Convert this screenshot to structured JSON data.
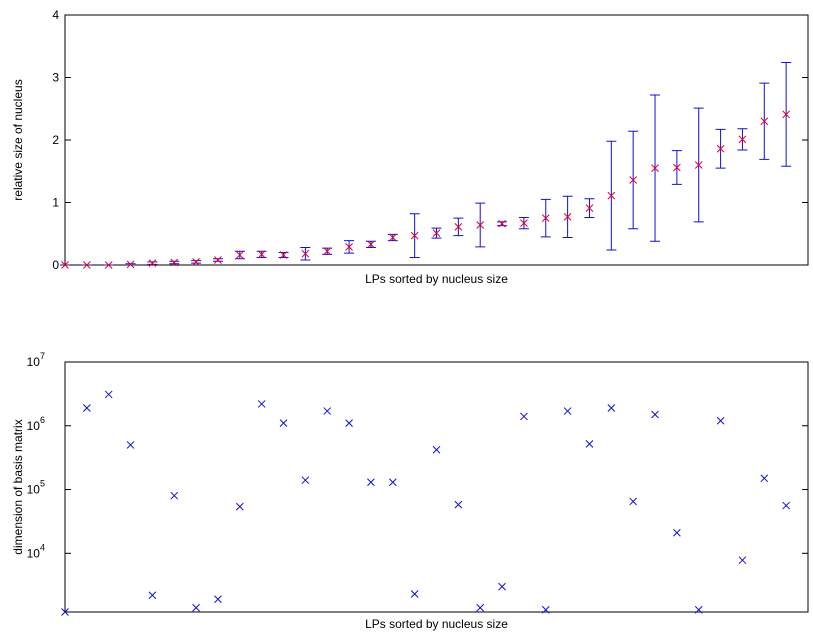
{
  "chart_data": [
    {
      "type": "errorbar",
      "xlabel": "LPs sorted by nucleus size",
      "ylabel": "relative size of nucleus",
      "x": [
        1,
        2,
        3,
        4,
        5,
        6,
        7,
        8,
        9,
        10,
        11,
        12,
        13,
        14,
        15,
        16,
        17,
        18,
        19,
        20,
        21,
        22,
        23,
        24,
        25,
        26,
        27,
        28,
        29,
        30,
        31,
        32,
        33,
        34
      ],
      "xlim": [
        1,
        35
      ],
      "ylim": [
        0,
        4
      ],
      "yticks": [
        0,
        1,
        2,
        3,
        4
      ],
      "series": [
        {
          "marker_color": "#e3002b",
          "color": "#1010d8",
          "values": [
            0,
            0,
            0,
            0.01,
            0.03,
            0.04,
            0.05,
            0.08,
            0.16,
            0.17,
            0.16,
            0.18,
            0.22,
            0.29,
            0.33,
            0.44,
            0.47,
            0.51,
            0.61,
            0.64,
            0.66,
            0.67,
            0.75,
            0.77,
            0.91,
            1.11,
            1.36,
            1.55,
            1.56,
            1.6,
            1.86,
            2.01,
            2.3,
            2.41
          ],
          "errors": [
            0,
            0,
            0,
            0.01,
            0.02,
            0.02,
            0.02,
            0.02,
            0.06,
            0.05,
            0.04,
            0.1,
            0.05,
            0.1,
            0.05,
            0.05,
            0.35,
            0.08,
            0.14,
            0.35,
            0.03,
            0.09,
            0.3,
            0.33,
            0.15,
            0.87,
            0.78,
            1.17,
            0.27,
            0.91,
            0.31,
            0.17,
            0.61,
            0.83
          ]
        }
      ]
    },
    {
      "type": "scatter",
      "xlabel": "LPs sorted by nucleus size",
      "ylabel": "dimension of basis matrix",
      "x": [
        1,
        2,
        3,
        4,
        5,
        6,
        7,
        8,
        9,
        10,
        11,
        12,
        13,
        14,
        15,
        16,
        17,
        18,
        19,
        20,
        21,
        22,
        23,
        24,
        25,
        26,
        27,
        28,
        29,
        30,
        31,
        32,
        33,
        34
      ],
      "xlim": [
        1,
        35
      ],
      "ylim": [
        1200,
        10000000
      ],
      "log_y": true,
      "yticks": [
        {
          "value": 10000,
          "label": "10",
          "exponent": "4"
        },
        {
          "value": 100000,
          "label": "10",
          "exponent": "5"
        },
        {
          "value": 1000000,
          "label": "10",
          "exponent": "6"
        },
        {
          "value": 10000000,
          "label": "10",
          "exponent": "7"
        }
      ],
      "series": [
        {
          "color": "#1010d8",
          "values": [
            1200,
            1900000,
            3100000,
            500000,
            2200,
            80000,
            1400,
            1900,
            54000,
            2200000,
            1100000,
            140000,
            1700000,
            1100000,
            130000,
            130000,
            2300,
            420000,
            58000,
            1400,
            3000,
            1400000,
            1300,
            1700000,
            520000,
            1900000,
            65000,
            1500000,
            21000,
            1300,
            1200000,
            7800,
            150000,
            56000
          ]
        }
      ]
    }
  ]
}
